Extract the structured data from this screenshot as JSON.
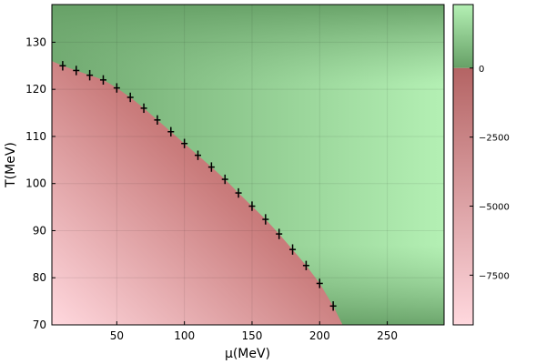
{
  "chart_data": {
    "type": "heatmap",
    "xlabel": "μ(MeV)",
    "ylabel": "T(MeV)",
    "xlim": [
      2,
      292
    ],
    "ylim": [
      70,
      138
    ],
    "grid": true,
    "x_ticks": [
      50,
      100,
      150,
      200,
      250
    ],
    "y_ticks": [
      70,
      80,
      90,
      100,
      110,
      120,
      130
    ],
    "x_tick_labels": [
      "50",
      "100",
      "150",
      "200",
      "250"
    ],
    "y_tick_labels": [
      "70",
      "80",
      "90",
      "100",
      "110",
      "120",
      "130"
    ],
    "colorbar": {
      "range": [
        -9300,
        2300
      ],
      "ticks": [
        0,
        -2500,
        -5000,
        -7500
      ],
      "tick_labels": [
        "0",
        "−2500",
        "−5000",
        "−7500"
      ],
      "positive_colors": [
        "#66a066",
        "#b4f0b4"
      ],
      "negative_colors": [
        "#b46464",
        "#ffd8de"
      ]
    },
    "boundary_points": [
      {
        "x": 10,
        "y": 125.0,
        "yerr": 1.0
      },
      {
        "x": 20,
        "y": 124.0,
        "yerr": 1.0
      },
      {
        "x": 30,
        "y": 123.0,
        "yerr": 1.1
      },
      {
        "x": 40,
        "y": 122.0,
        "yerr": 1.0
      },
      {
        "x": 50,
        "y": 120.3,
        "yerr": 1.0
      },
      {
        "x": 60,
        "y": 118.3,
        "yerr": 1.0
      },
      {
        "x": 70,
        "y": 116.0,
        "yerr": 1.0
      },
      {
        "x": 80,
        "y": 113.5,
        "yerr": 1.0
      },
      {
        "x": 90,
        "y": 111.0,
        "yerr": 1.0
      },
      {
        "x": 100,
        "y": 108.5,
        "yerr": 1.0
      },
      {
        "x": 110,
        "y": 106.0,
        "yerr": 1.0
      },
      {
        "x": 120,
        "y": 103.5,
        "yerr": 1.0
      },
      {
        "x": 130,
        "y": 100.9,
        "yerr": 1.0
      },
      {
        "x": 140,
        "y": 98.0,
        "yerr": 1.0
      },
      {
        "x": 150,
        "y": 95.2,
        "yerr": 1.0
      },
      {
        "x": 160,
        "y": 92.4,
        "yerr": 1.1
      },
      {
        "x": 170,
        "y": 89.3,
        "yerr": 1.1
      },
      {
        "x": 180,
        "y": 86.0,
        "yerr": 1.1
      },
      {
        "x": 190,
        "y": 82.6,
        "yerr": 1.0
      },
      {
        "x": 200,
        "y": 78.8,
        "yerr": 1.0
      },
      {
        "x": 210,
        "y": 74.0,
        "yerr": 1.0
      }
    ]
  }
}
